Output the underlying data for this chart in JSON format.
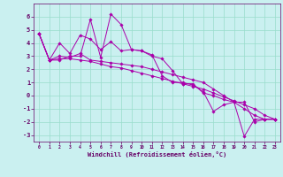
{
  "background_color": "#caf0f0",
  "grid_color": "#99ddcc",
  "line_color": "#aa00aa",
  "spine_color": "#660066",
  "xlim": [
    -0.5,
    23.5
  ],
  "ylim": [
    -3.5,
    7.0
  ],
  "yticks": [
    -3,
    -2,
    -1,
    0,
    1,
    2,
    3,
    4,
    5,
    6
  ],
  "xticks": [
    0,
    1,
    2,
    3,
    4,
    5,
    6,
    7,
    8,
    9,
    10,
    11,
    12,
    13,
    14,
    15,
    16,
    17,
    18,
    19,
    20,
    21,
    22,
    23
  ],
  "xlabel": "Windchill (Refroidissement éolien,°C)",
  "figsize": [
    3.2,
    2.0
  ],
  "dpi": 100,
  "series": [
    [
      4.7,
      2.7,
      2.7,
      3.0,
      3.0,
      5.8,
      2.9,
      6.2,
      5.4,
      3.5,
      3.4,
      3.0,
      2.8,
      1.9,
      0.9,
      0.9,
      0.2,
      0.0,
      -0.3,
      -0.5,
      -3.1,
      -1.8,
      -1.8,
      -1.8
    ],
    [
      4.7,
      2.7,
      4.0,
      3.2,
      4.6,
      4.3,
      3.5,
      4.1,
      3.4,
      3.5,
      3.4,
      3.1,
      1.5,
      1.0,
      1.0,
      0.8,
      0.3,
      -1.2,
      -0.7,
      -0.5,
      -0.5,
      -2.0,
      -1.8,
      -1.8
    ],
    [
      4.7,
      2.7,
      3.0,
      2.9,
      3.2,
      2.7,
      2.6,
      2.5,
      2.4,
      2.3,
      2.2,
      2.0,
      1.8,
      1.6,
      1.4,
      1.2,
      1.0,
      0.5,
      0.0,
      -0.5,
      -1.0,
      -1.5,
      -1.8,
      -1.8
    ],
    [
      4.7,
      2.7,
      2.8,
      2.8,
      2.7,
      2.6,
      2.4,
      2.2,
      2.1,
      1.9,
      1.7,
      1.5,
      1.3,
      1.1,
      0.9,
      0.7,
      0.5,
      0.2,
      -0.1,
      -0.4,
      -0.7,
      -1.0,
      -1.5,
      -1.8
    ]
  ]
}
